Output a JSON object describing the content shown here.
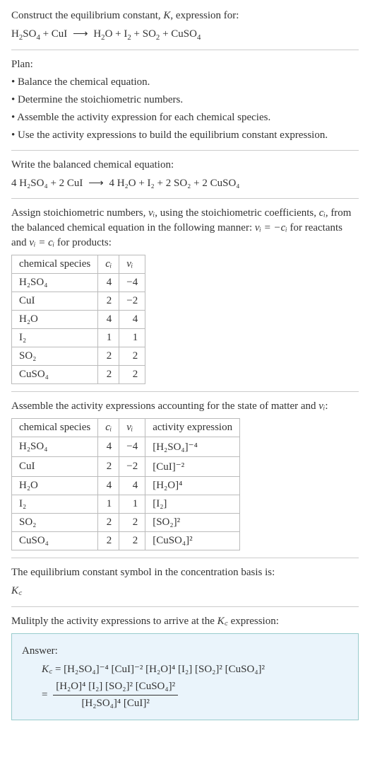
{
  "header": {
    "line1_pre": "Construct the equilibrium constant, ",
    "line1_K": "K",
    "line1_post": ", expression for:",
    "eq_lhs_parts": [
      "H",
      "2",
      "SO",
      "4",
      " + CuI"
    ],
    "eq_arrow": "⟶",
    "eq_rhs_parts": [
      "H",
      "2",
      "O + I",
      "2",
      " + SO",
      "2",
      " + CuSO",
      "4"
    ]
  },
  "plan": {
    "title": "Plan:",
    "bullets": [
      "• Balance the chemical equation.",
      "• Determine the stoichiometric numbers.",
      "• Assemble the activity expression for each chemical species.",
      "• Use the activity expressions to build the equilibrium constant expression."
    ]
  },
  "balanced": {
    "intro": "Write the balanced chemical equation:",
    "lhs": "4 H₂SO₄ + 2 CuI",
    "arrow": "⟶",
    "rhs": "4 H₂O + I₂ + 2 SO₂ + 2 CuSO₄"
  },
  "stoich": {
    "text_a": "Assign stoichiometric numbers, ",
    "nu": "νᵢ",
    "text_b": ", using the stoichiometric coefficients, ",
    "ci": "cᵢ",
    "text_c": ", from the balanced chemical equation in the following manner: ",
    "rel1": "νᵢ = −cᵢ",
    "text_d": " for reactants and ",
    "rel2": "νᵢ = cᵢ",
    "text_e": " for products:"
  },
  "table1": {
    "headers": [
      "chemical species",
      "cᵢ",
      "νᵢ"
    ],
    "rows": [
      {
        "sp": "H₂SO₄",
        "c": "4",
        "v": "−4"
      },
      {
        "sp": "CuI",
        "c": "2",
        "v": "−2"
      },
      {
        "sp": "H₂O",
        "c": "4",
        "v": "4"
      },
      {
        "sp": "I₂",
        "c": "1",
        "v": "1"
      },
      {
        "sp": "SO₂",
        "c": "2",
        "v": "2"
      },
      {
        "sp": "CuSO₄",
        "c": "2",
        "v": "2"
      }
    ]
  },
  "assemble": {
    "text_a": "Assemble the activity expressions accounting for the state of matter and ",
    "nu": "νᵢ",
    "text_b": ":"
  },
  "table2": {
    "headers": [
      "chemical species",
      "cᵢ",
      "νᵢ",
      "activity expression"
    ],
    "rows": [
      {
        "sp": "H₂SO₄",
        "c": "4",
        "v": "−4",
        "a": "[H₂SO₄]⁻⁴"
      },
      {
        "sp": "CuI",
        "c": "2",
        "v": "−2",
        "a": "[CuI]⁻²"
      },
      {
        "sp": "H₂O",
        "c": "4",
        "v": "4",
        "a": "[H₂O]⁴"
      },
      {
        "sp": "I₂",
        "c": "1",
        "v": "1",
        "a": "[I₂]"
      },
      {
        "sp": "SO₂",
        "c": "2",
        "v": "2",
        "a": "[SO₂]²"
      },
      {
        "sp": "CuSO₄",
        "c": "2",
        "v": "2",
        "a": "[CuSO₄]²"
      }
    ]
  },
  "symbol_line": {
    "text": "The equilibrium constant symbol in the concentration basis is:",
    "kc": "K꜀"
  },
  "multiply_line": {
    "text_a": "Mulitply the activity expressions to arrive at the ",
    "kc": "K꜀",
    "text_b": " expression:"
  },
  "answer": {
    "label": "Answer:",
    "kc": "K꜀",
    "line1": " = [H₂SO₄]⁻⁴ [CuI]⁻² [H₂O]⁴ [I₂] [SO₂]² [CuSO₄]²",
    "eq2_pre": "= ",
    "frac_num": "[H₂O]⁴ [I₂] [SO₂]² [CuSO₄]²",
    "frac_den": "[H₂SO₄]⁴ [CuI]²"
  }
}
